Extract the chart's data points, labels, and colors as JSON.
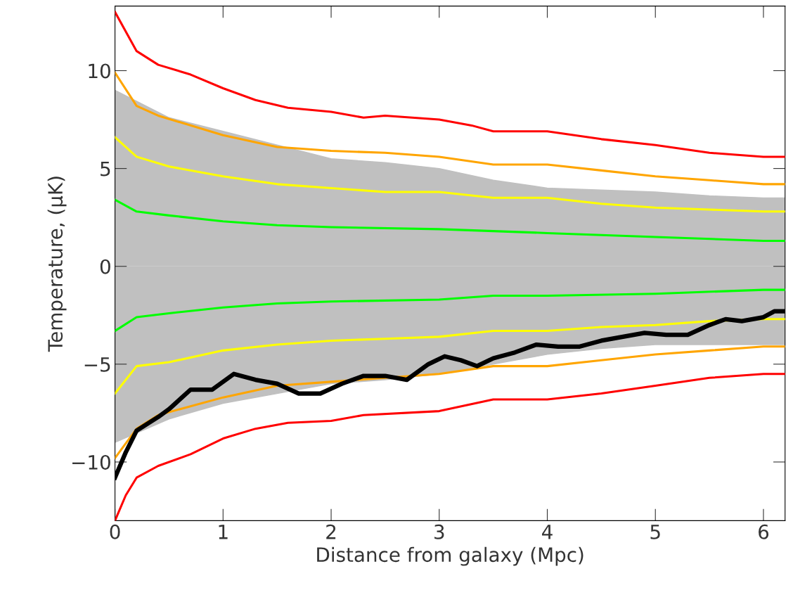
{
  "chart_data": {
    "type": "line",
    "xlabel": "Distance from galaxy (Mpc)",
    "ylabel": "Temperature, (μK)",
    "xlim": [
      0,
      6.2
    ],
    "ylim": [
      -13,
      13.3
    ],
    "xticks": [
      0,
      1,
      2,
      3,
      4,
      5,
      6
    ],
    "yticks": [
      -10,
      -5,
      0,
      5,
      10
    ],
    "grid": false,
    "legend": false,
    "marker": "none",
    "line_style": "solid",
    "series": [
      {
        "type": "area",
        "color": "#c0c0c0",
        "x": [
          0,
          0.5,
          1,
          1.5,
          2,
          2.5,
          3,
          3.5,
          4,
          4.5,
          5,
          5.5,
          6,
          6.2
        ],
        "values": [
          9,
          7.6,
          6.9,
          6.2,
          5.5,
          5.3,
          5,
          4.4,
          4,
          3.9,
          3.8,
          3.6,
          3.5,
          3.5
        ]
      },
      {
        "type": "area",
        "color": "#c0c0c0",
        "x": [
          0,
          0.5,
          1,
          1.5,
          2,
          2.5,
          3,
          3.5,
          4,
          4.5,
          5,
          5.5,
          6,
          6.2
        ],
        "values": [
          -9,
          -7.8,
          -7,
          -6.5,
          -6,
          -5.8,
          -5.5,
          -5,
          -4.5,
          -4.2,
          -4,
          -4,
          -4,
          -4
        ]
      },
      {
        "color": "#ff0000",
        "x": [
          0,
          0.2,
          0.4,
          0.7,
          1,
          1.3,
          1.6,
          2,
          2.3,
          2.5,
          3,
          3.3,
          3.5,
          4,
          4.5,
          5,
          5.5,
          6,
          6.2
        ],
        "values": [
          13,
          11,
          10.3,
          9.8,
          9.1,
          8.5,
          8.1,
          7.9,
          7.6,
          7.7,
          7.5,
          7.2,
          6.9,
          6.9,
          6.5,
          6.2,
          5.8,
          5.6,
          5.6
        ]
      },
      {
        "color": "#ff0000",
        "x": [
          0,
          0.1,
          0.2,
          0.4,
          0.7,
          1,
          1.3,
          1.6,
          2,
          2.3,
          3,
          3.5,
          4,
          4.5,
          5,
          5.5,
          6,
          6.2
        ],
        "values": [
          -13,
          -11.7,
          -10.8,
          -10.2,
          -9.6,
          -8.8,
          -8.3,
          -8,
          -7.9,
          -7.6,
          -7.4,
          -6.8,
          -6.8,
          -6.5,
          -6.1,
          -5.7,
          -5.5,
          -5.5
        ]
      },
      {
        "color": "#ffa500",
        "x": [
          0,
          0.2,
          0.4,
          1,
          1.5,
          2,
          2.5,
          3,
          3.5,
          4,
          4.5,
          5,
          5.5,
          6,
          6.2
        ],
        "values": [
          9.9,
          8.2,
          7.7,
          6.7,
          6.1,
          5.9,
          5.8,
          5.6,
          5.2,
          5.2,
          4.9,
          4.6,
          4.4,
          4.2,
          4.2
        ]
      },
      {
        "color": "#ffa500",
        "x": [
          0,
          0.2,
          0.4,
          1,
          1.5,
          2,
          2.5,
          3,
          3.5,
          4,
          4.5,
          5,
          5.5,
          6,
          6.2
        ],
        "values": [
          -9.8,
          -8.3,
          -7.6,
          -6.7,
          -6.1,
          -5.9,
          -5.7,
          -5.5,
          -5.1,
          -5.1,
          -4.8,
          -4.5,
          -4.3,
          -4.1,
          -4.1
        ]
      },
      {
        "color": "#ffff00",
        "x": [
          0,
          0.2,
          0.5,
          1,
          1.5,
          2,
          2.5,
          3,
          3.5,
          4,
          4.5,
          5,
          5.5,
          6,
          6.2
        ],
        "values": [
          6.6,
          5.6,
          5.1,
          4.6,
          4.2,
          4,
          3.8,
          3.8,
          3.5,
          3.5,
          3.2,
          3,
          2.9,
          2.8,
          2.8
        ]
      },
      {
        "color": "#ffff00",
        "x": [
          0,
          0.2,
          0.5,
          1,
          1.5,
          2,
          2.5,
          3,
          3.5,
          4,
          4.5,
          5,
          5.5,
          6,
          6.2
        ],
        "values": [
          -6.5,
          -5.1,
          -4.9,
          -4.3,
          -4,
          -3.8,
          -3.7,
          -3.6,
          -3.3,
          -3.3,
          -3.1,
          -3,
          -2.8,
          -2.7,
          -2.7
        ]
      },
      {
        "color": "#00ff00",
        "x": [
          0,
          0.2,
          0.5,
          1,
          1.5,
          2,
          3,
          3.5,
          4,
          5,
          6,
          6.2
        ],
        "values": [
          3.4,
          2.8,
          2.6,
          2.3,
          2.1,
          2,
          1.9,
          1.8,
          1.7,
          1.5,
          1.3,
          1.3
        ]
      },
      {
        "color": "#00ff00",
        "x": [
          0,
          0.2,
          0.5,
          1,
          1.5,
          2,
          3,
          3.5,
          4,
          5,
          6,
          6.2
        ],
        "values": [
          -3.3,
          -2.6,
          -2.4,
          -2.1,
          -1.9,
          -1.8,
          -1.7,
          -1.5,
          -1.5,
          -1.4,
          -1.2,
          -1.2
        ]
      },
      {
        "color": "#000000",
        "x": [
          0,
          0.1,
          0.2,
          0.4,
          0.5,
          0.7,
          0.9,
          1.1,
          1.3,
          1.5,
          1.7,
          1.9,
          2.1,
          2.3,
          2.5,
          2.7,
          2.9,
          3.05,
          3.2,
          3.35,
          3.5,
          3.7,
          3.9,
          4.1,
          4.3,
          4.5,
          4.7,
          4.9,
          5.1,
          5.3,
          5.5,
          5.65,
          5.8,
          6,
          6.1,
          6.2
        ],
        "values": [
          -10.8,
          -9.5,
          -8.4,
          -7.7,
          -7.3,
          -6.3,
          -6.3,
          -5.5,
          -5.8,
          -6,
          -6.5,
          -6.5,
          -6,
          -5.6,
          -5.6,
          -5.8,
          -5,
          -4.6,
          -4.8,
          -5.1,
          -4.7,
          -4.4,
          -4,
          -4.1,
          -4.1,
          -3.8,
          -3.6,
          -3.4,
          -3.5,
          -3.5,
          -3,
          -2.7,
          -2.8,
          -2.6,
          -2.3,
          -2.3
        ]
      }
    ]
  }
}
